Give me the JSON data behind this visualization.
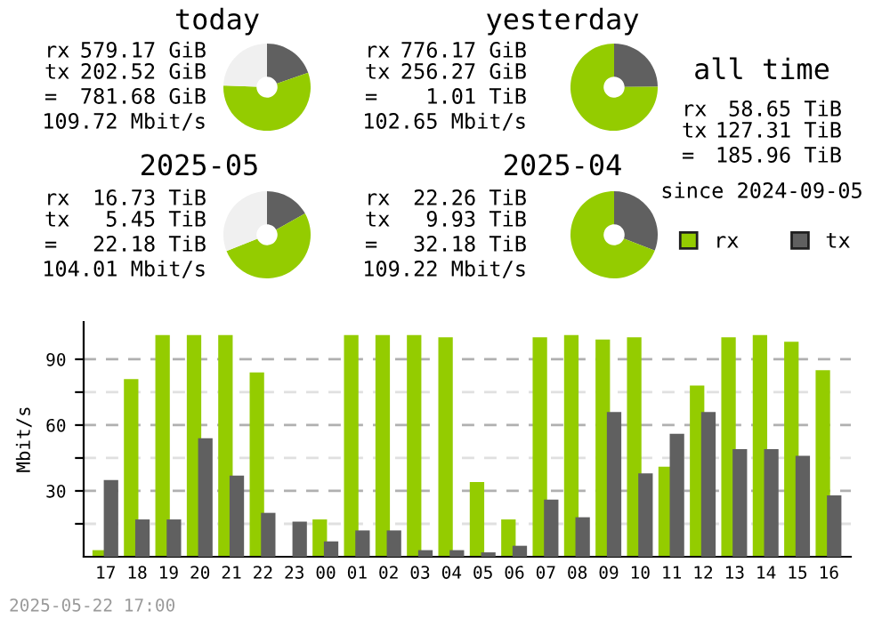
{
  "chart_data": [
    {
      "type": "donut",
      "title": "today",
      "categories": [
        null,
        null,
        null
      ],
      "values": [
        19.6,
        56.0,
        24.4
      ],
      "colors": [
        "#606060",
        "#94cc00",
        "#f0f0f0"
      ],
      "annotations": [
        "rx 579.17 GiB",
        "tx 202.52 GiB",
        "= 781.68 GiB",
        "109.72 Mbit/s"
      ]
    },
    {
      "type": "donut",
      "title": "yesterday",
      "categories": [
        null,
        null
      ],
      "values": [
        24.8,
        75.2
      ],
      "colors": [
        "#606060",
        "#94cc00"
      ],
      "annotations": [
        "rx 776.17 GiB",
        "tx 256.27 GiB",
        "= 1.01 TiB",
        "102.65 Mbit/s"
      ]
    },
    {
      "type": "other",
      "title": "all time",
      "annotations": [
        "rx 58.65 TiB",
        "tx 127.31 TiB",
        "= 185.96 TiB",
        "since 2024-09-05"
      ]
    },
    {
      "type": "donut",
      "title": "2025-05",
      "categories": [
        null,
        null,
        null
      ],
      "values": [
        16.9,
        52.0,
        31.1
      ],
      "colors": [
        "#606060",
        "#94cc00",
        "#f0f0f0"
      ],
      "annotations": [
        "rx 16.73 TiB",
        "tx 5.45 TiB",
        "= 22.18 TiB",
        "104.01 Mbit/s"
      ]
    },
    {
      "type": "donut",
      "title": "2025-04",
      "categories": [
        null,
        null
      ],
      "values": [
        30.9,
        69.1
      ],
      "colors": [
        "#606060",
        "#94cc00"
      ],
      "annotations": [
        "rx 22.26 TiB",
        "tx 9.93 TiB",
        "= 32.18 TiB",
        "109.22 Mbit/s"
      ]
    },
    {
      "type": "bar",
      "ylabel": "Mbit/s",
      "categories": [
        "17",
        "18",
        "19",
        "20",
        "21",
        "22",
        "23",
        "00",
        "01",
        "02",
        "03",
        "04",
        "05",
        "06",
        "07",
        "08",
        "09",
        "10",
        "11",
        "12",
        "13",
        "14",
        "15",
        "16"
      ],
      "series": [
        {
          "name": "rx",
          "color": "#94cc00",
          "values": [
            3,
            81,
            101,
            101,
            101,
            84,
            0,
            17,
            101,
            101,
            101,
            100,
            34,
            17,
            100,
            101,
            99,
            100,
            41,
            78,
            100,
            101,
            98,
            85
          ]
        },
        {
          "name": "tx",
          "color": "#606060",
          "values": [
            35,
            17,
            17,
            54,
            37,
            20,
            16,
            7,
            12,
            12,
            3,
            3,
            2,
            5,
            26,
            18,
            66,
            38,
            56,
            66,
            49,
            49,
            46,
            28
          ]
        }
      ],
      "ylim": [
        0,
        107
      ],
      "yticks": [
        {
          "value": 15,
          "label": null
        },
        30,
        {
          "value": 45,
          "label": null
        },
        60,
        {
          "value": 75,
          "label": null
        },
        90
      ],
      "grid": "y",
      "legend": "top right",
      "annotations": [
        "2025-05-22 17:00"
      ]
    }
  ]
}
